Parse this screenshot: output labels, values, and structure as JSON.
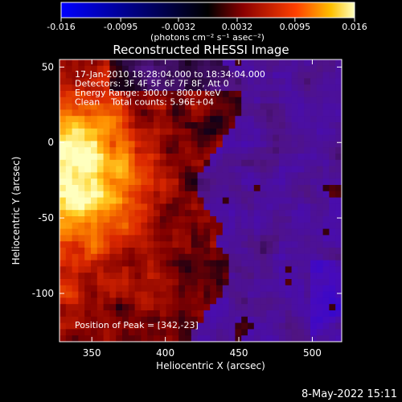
{
  "colorbar": {
    "ticks": [
      "-0.016",
      "-0.0095",
      "-0.0032",
      "0.0032",
      "0.0095",
      "0.016"
    ],
    "units_label": "(photons cm⁻² s⁻¹ asec⁻²)",
    "range": [
      -0.016,
      0.016
    ]
  },
  "annotations": {
    "time_range": "17-Jan-2010 18:28:04.000 to 18:34:04.000",
    "detectors": "Detectors: 3F 4F 5F 6F 7F 8F, Att 0",
    "energy_range": "Energy Range: 300.0 - 800.0 keV",
    "method_counts": "Clean    Total counts: 5.96E+04",
    "peak": "Position of Peak = [342,-23]"
  },
  "footer": {
    "date": "8-May-2022 15:11"
  },
  "colors": {
    "background": "#000000",
    "text": "#ffffff"
  },
  "chart_data": {
    "type": "heatmap",
    "title": "Reconstructed RHESSI Image",
    "xlabel": "Heliocentric X (arcsec)",
    "ylabel": "Heliocentric Y (arcsec)",
    "xlim": [
      328,
      520
    ],
    "ylim": [
      -132,
      55
    ],
    "x_ticks": [
      350,
      400,
      450,
      500
    ],
    "y_ticks": [
      50,
      0,
      -50,
      -100
    ],
    "peak": [
      342,
      -23
    ]
  }
}
